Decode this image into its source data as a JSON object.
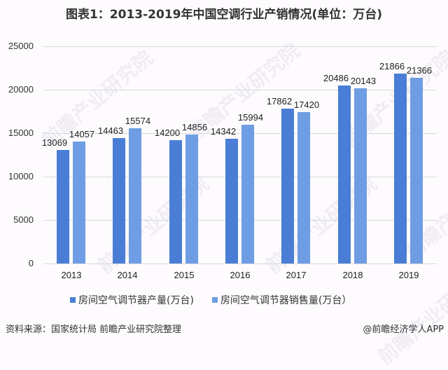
{
  "title": "图表1：2013-2019年中国空调行业产销情况(单位：万台)",
  "colors": {
    "production": "#4a7ed6",
    "sales": "#6f9de3",
    "grid": "#d9d9d9"
  },
  "legend": [
    {
      "label": "房间空气调节器产量(万台)",
      "color": "#4a7ed6"
    },
    {
      "label": "房间空气调节器销售量(万台）",
      "color": "#6f9de3"
    }
  ],
  "footer": {
    "source": "资料来源：国家统计局 前瞻产业研究院整理",
    "credit": "@前瞻经济学人APP"
  },
  "watermark": "前瞻产业研究院",
  "chart_data": {
    "type": "bar",
    "title": "图表1：2013-2019年中国空调行业产销情况(单位：万台)",
    "xlabel": "",
    "ylabel": "",
    "ylim": [
      0,
      25000
    ],
    "yticks": [
      0,
      5000,
      10000,
      15000,
      20000,
      25000
    ],
    "grid": true,
    "legend_position": "bottom",
    "categories": [
      "2013",
      "2014",
      "2015",
      "2016",
      "2017",
      "2018",
      "2019"
    ],
    "series": [
      {
        "name": "房间空气调节器产量(万台)",
        "values": [
          13069,
          14463,
          14200,
          14342,
          17862,
          20486,
          21866
        ]
      },
      {
        "name": "房间空气调节器销售量(万台）",
        "values": [
          14057,
          15574,
          14856,
          15994,
          17420,
          20143,
          21366
        ]
      }
    ]
  }
}
